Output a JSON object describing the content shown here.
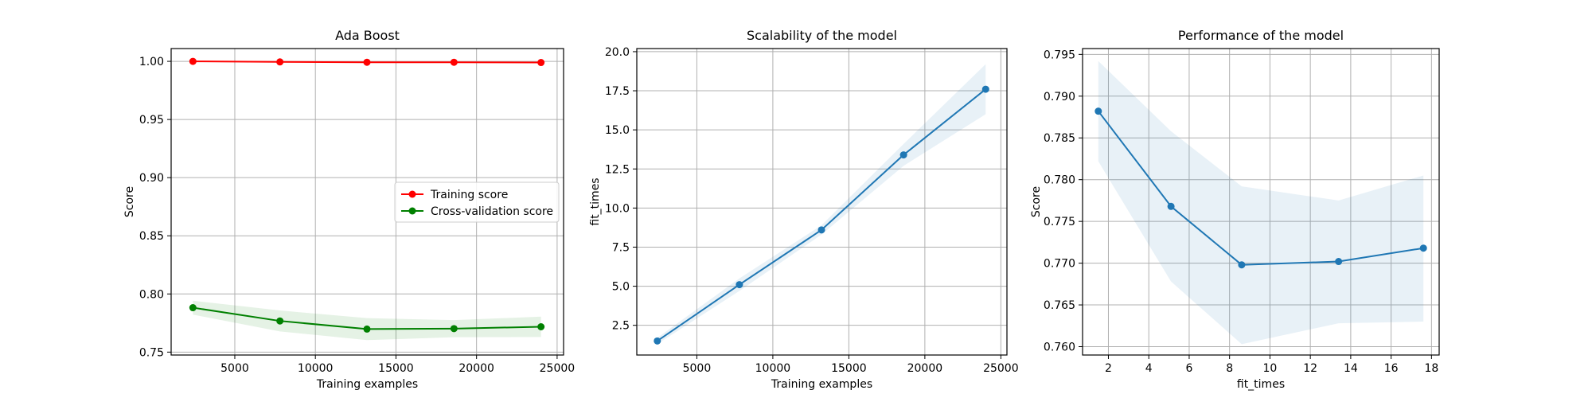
{
  "chart_data": [
    {
      "type": "line",
      "title": "Ada Boost",
      "xlabel": "Training examples",
      "ylabel": "Score",
      "xlim": [
        1050,
        25400
      ],
      "ylim": [
        0.7475,
        1.011
      ],
      "xticks": [
        5000,
        10000,
        15000,
        20000,
        25000
      ],
      "yticks": [
        0.75,
        0.8,
        0.85,
        0.9,
        0.95,
        1.0
      ],
      "ytick_decimals": 2,
      "grid": true,
      "legend": {
        "placement": "center-right",
        "entries": [
          "Training score",
          "Cross-validation score"
        ]
      },
      "series": [
        {
          "name": "Training score",
          "color": "#ff0000",
          "x": [
            2400,
            7800,
            13200,
            18600,
            24000
          ],
          "y": [
            1.0,
            0.9995,
            0.9992,
            0.9992,
            0.999
          ],
          "band_lower": [
            0.9995,
            0.999,
            0.9987,
            0.9987,
            0.9985
          ],
          "band_upper": [
            1.0005,
            1.0,
            0.9997,
            0.9997,
            0.9995
          ]
        },
        {
          "name": "Cross-validation score",
          "color": "#008000",
          "x": [
            2400,
            7800,
            13200,
            18600,
            24000
          ],
          "y": [
            0.7882,
            0.7768,
            0.7698,
            0.7702,
            0.7718
          ],
          "band_lower": [
            0.7822,
            0.7678,
            0.7603,
            0.7628,
            0.763
          ],
          "band_upper": [
            0.7942,
            0.7858,
            0.7792,
            0.7775,
            0.7805
          ]
        }
      ]
    },
    {
      "type": "line",
      "title": "Scalability of the model",
      "xlabel": "Training examples",
      "ylabel": "fit_times",
      "xlim": [
        1050,
        25400
      ],
      "ylim": [
        0.6,
        20.2
      ],
      "xticks": [
        5000,
        10000,
        15000,
        20000,
        25000
      ],
      "yticks": [
        2.5,
        5.0,
        7.5,
        10.0,
        12.5,
        15.0,
        17.5,
        20.0
      ],
      "ytick_decimals": 1,
      "grid": true,
      "series": [
        {
          "color": "#1f77b4",
          "x": [
            2400,
            7800,
            13200,
            18600,
            24000
          ],
          "y": [
            1.5,
            5.1,
            8.6,
            13.4,
            17.6
          ],
          "band_lower": [
            1.3,
            4.7,
            8.3,
            12.7,
            16.0
          ],
          "band_upper": [
            1.7,
            5.5,
            8.9,
            14.1,
            19.2
          ]
        }
      ]
    },
    {
      "type": "line",
      "title": "Performance of the model",
      "xlabel": "fit_times",
      "ylabel": "Score",
      "xlim": [
        0.72,
        18.38
      ],
      "ylim": [
        0.759,
        0.7957
      ],
      "xticks": [
        2,
        4,
        6,
        8,
        10,
        12,
        14,
        16,
        18
      ],
      "yticks": [
        0.76,
        0.765,
        0.77,
        0.775,
        0.78,
        0.785,
        0.79,
        0.795
      ],
      "ytick_decimals": 3,
      "grid": true,
      "series": [
        {
          "color": "#1f77b4",
          "x": [
            1.5,
            5.1,
            8.6,
            13.4,
            17.6
          ],
          "y": [
            0.7882,
            0.7768,
            0.7698,
            0.7702,
            0.7718
          ],
          "band_lower": [
            0.7822,
            0.7678,
            0.7603,
            0.7628,
            0.763
          ],
          "band_upper": [
            0.7942,
            0.7858,
            0.7792,
            0.7775,
            0.7805
          ]
        }
      ]
    }
  ]
}
